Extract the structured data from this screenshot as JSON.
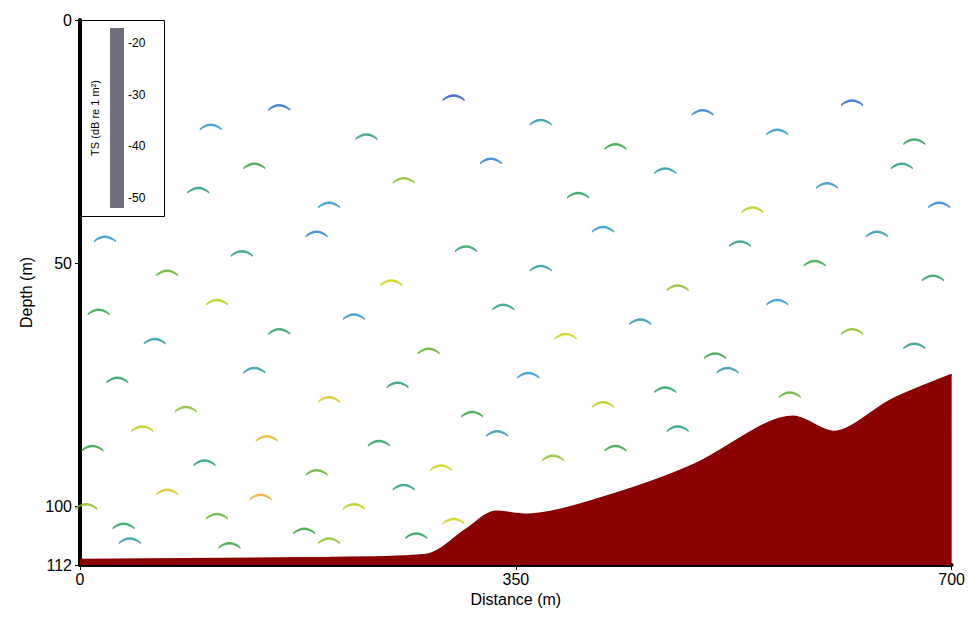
{
  "chart_data": {
    "type": "scatter",
    "x_label": "Distance (m)",
    "y_label": "Depth (m)",
    "xlim": [
      0,
      700
    ],
    "xticks": [
      0,
      350,
      700
    ],
    "ylim": [
      0,
      112
    ],
    "yticks": [
      0,
      50,
      100
    ],
    "grid": false,
    "series": [
      {
        "type": "scatter",
        "marker": "arc",
        "x": [
          105,
          160,
          230,
          300,
          370,
          430,
          500,
          560,
          620,
          670,
          95,
          140,
          200,
          260,
          330,
          400,
          470,
          540,
          600,
          660,
          690,
          20,
          70,
          130,
          190,
          250,
          310,
          370,
          420,
          480,
          530,
          590,
          640,
          685,
          15,
          60,
          110,
          160,
          220,
          280,
          340,
          390,
          450,
          510,
          560,
          620,
          670,
          30,
          85,
          140,
          200,
          255,
          315,
          360,
          420,
          470,
          520,
          570,
          10,
          50,
          100,
          150,
          190,
          240,
          290,
          335,
          380,
          430,
          480,
          5,
          35,
          70,
          110,
          145,
          180,
          220,
          260,
          300,
          40,
          120,
          200,
          270
        ],
        "y": [
          22,
          18,
          24,
          16,
          21,
          26,
          19,
          23,
          17,
          25,
          35,
          30,
          38,
          33,
          29,
          36,
          31,
          39,
          34,
          30,
          38,
          45,
          52,
          48,
          44,
          54,
          47,
          51,
          43,
          55,
          46,
          50,
          44,
          53,
          60,
          66,
          58,
          64,
          61,
          68,
          59,
          65,
          62,
          69,
          58,
          64,
          67,
          74,
          80,
          72,
          78,
          75,
          81,
          73,
          79,
          76,
          72,
          77,
          88,
          84,
          91,
          86,
          93,
          87,
          92,
          85,
          90,
          88,
          84,
          100,
          104,
          97,
          102,
          98,
          105,
          100,
          96,
          103,
          107,
          108,
          107,
          106
        ],
        "ts": [
          -44,
          -46,
          -42,
          -47,
          -43,
          -40,
          -45,
          -44,
          -46,
          -41,
          -42,
          -40,
          -44,
          -38,
          -45,
          -41,
          -43,
          -37,
          -44,
          -42,
          -45,
          -44,
          -39,
          -42,
          -45,
          -36,
          -41,
          -43,
          -44,
          -38,
          -42,
          -40,
          -43,
          -41,
          -40,
          -43,
          -37,
          -41,
          -44,
          -39,
          -42,
          -36,
          -43,
          -40,
          -44,
          -38,
          -42,
          -41,
          -38,
          -43,
          -35,
          -42,
          -40,
          -44,
          -37,
          -41,
          -43,
          -39,
          -40,
          -37,
          -42,
          -34,
          -39,
          -41,
          -36,
          -43,
          -38,
          -40,
          -42,
          -38,
          -41,
          -35,
          -39,
          -33,
          -40,
          -37,
          -42,
          -36,
          -43,
          -40,
          -38,
          -41
        ]
      },
      {
        "type": "area",
        "color": "#8b0000",
        "x": [
          0,
          200,
          278,
          310,
          334,
          358,
          414,
          493,
          549,
          573,
          605,
          652,
          700
        ],
        "y": [
          110.9,
          110.5,
          109.9,
          104.7,
          101,
          101.6,
          98.6,
          91.4,
          83.2,
          81.5,
          84.6,
          78,
          72.9
        ]
      }
    ],
    "colorbar": {
      "label": "TS (dB re 1 m²)",
      "range": [
        -52,
        -17
      ],
      "ticks": [
        -20,
        -30,
        -40,
        -50
      ],
      "colors": [
        "#6e6e80",
        "#1e2ad8",
        "#1f8fd6",
        "#1a9a3c",
        "#c9d400",
        "#f4a21e",
        "#ff6fa2",
        "#e8203a",
        "#a31010",
        "#7a0808"
      ]
    }
  }
}
